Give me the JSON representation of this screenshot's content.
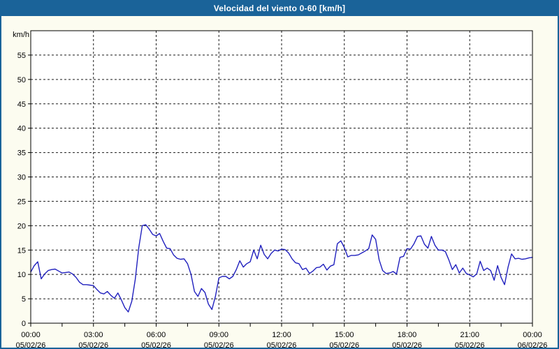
{
  "title": "Velocidad del viento 0-60 [km/h]",
  "colors": {
    "title_bar_bg": "#1a6399",
    "title_text": "#ffffff",
    "page_bg": "#fcfcf0",
    "plot_bg": "#ffffff",
    "frame": "#000000",
    "grid": "#1a1a1a",
    "line": "#2121be"
  },
  "chart_data": {
    "type": "line",
    "title": "Velocidad del viento 0-60 [km/h]",
    "ylabel": "km/h",
    "xlabel": "",
    "ylim": [
      0,
      60
    ],
    "xlim_hours": [
      0,
      24
    ],
    "grid": "dashed",
    "legend_position": "none",
    "y_ticks": [
      0,
      5,
      10,
      15,
      20,
      25,
      30,
      35,
      40,
      45,
      50,
      55
    ],
    "x_major_ticks": [
      {
        "hour": 0,
        "time": "00:00",
        "date": "05/02/26"
      },
      {
        "hour": 3,
        "time": "03:00",
        "date": "05/02/26"
      },
      {
        "hour": 6,
        "time": "06:00",
        "date": "05/02/26"
      },
      {
        "hour": 9,
        "time": "09:00",
        "date": "05/02/26"
      },
      {
        "hour": 12,
        "time": "12:00",
        "date": "05/02/26"
      },
      {
        "hour": 15,
        "time": "15:00",
        "date": "05/02/26"
      },
      {
        "hour": 18,
        "time": "18:00",
        "date": "05/02/26"
      },
      {
        "hour": 21,
        "time": "21:00",
        "date": "05/02/26"
      },
      {
        "hour": 24,
        "time": "00:00",
        "date": "06/02/26"
      }
    ],
    "x_minor_tick_every_hours": 1.5,
    "series": [
      {
        "name": "Velocidad del viento",
        "start_hour": 0,
        "interval_minutes": 10,
        "unit": "km/h",
        "values": [
          10.5,
          11.8,
          12.6,
          9.1,
          10.1,
          10.8,
          11.0,
          11.1,
          10.7,
          10.3,
          10.4,
          10.5,
          10.1,
          9.4,
          8.4,
          7.9,
          7.9,
          7.8,
          7.7,
          6.9,
          6.2,
          6.0,
          6.5,
          5.7,
          5.1,
          6.2,
          4.8,
          3.2,
          2.3,
          4.5,
          9.0,
          15.5,
          20.0,
          20.2,
          19.3,
          18.2,
          17.9,
          18.4,
          16.8,
          15.4,
          15.3,
          14.0,
          13.3,
          13.1,
          13.2,
          12.2,
          10.0,
          6.5,
          5.5,
          7.1,
          6.3,
          3.9,
          2.8,
          5.5,
          9.3,
          9.6,
          9.6,
          9.1,
          9.6,
          11.0,
          12.8,
          11.5,
          12.2,
          12.6,
          15.0,
          13.2,
          16.0,
          14.1,
          13.2,
          14.3,
          15.0,
          14.8,
          15.2,
          15.1,
          14.4,
          13.2,
          12.4,
          12.2,
          11.0,
          11.3,
          10.2,
          10.7,
          11.4,
          11.5,
          12.1,
          10.9,
          11.7,
          12.0,
          16.3,
          16.9,
          15.5,
          13.6,
          13.9,
          13.9,
          14.0,
          14.4,
          14.8,
          15.3,
          18.1,
          17.2,
          13.0,
          10.8,
          10.2,
          10.3,
          10.6,
          10.1,
          13.5,
          13.7,
          15.3,
          15.2,
          16.3,
          17.8,
          17.9,
          16.2,
          15.4,
          17.8,
          16.0,
          15.0,
          15.0,
          14.7,
          13.0,
          11.0,
          12.0,
          10.3,
          11.3,
          10.2,
          9.9,
          9.5,
          10.1,
          12.7,
          10.8,
          11.3,
          10.8,
          8.8,
          11.8,
          9.4,
          7.9,
          11.5,
          14.2,
          13.2,
          13.3,
          13.1,
          13.2,
          13.4,
          13.5
        ]
      }
    ]
  }
}
